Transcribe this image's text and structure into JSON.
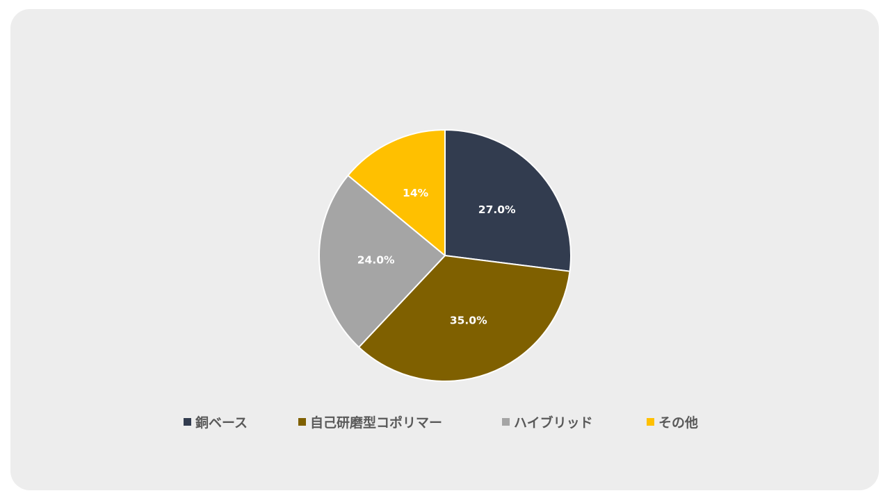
{
  "chart_data": {
    "type": "pie",
    "title": "",
    "slices": [
      {
        "name": "銅ベース",
        "value": 27.0,
        "label": "27.0%",
        "color": "#323c4f"
      },
      {
        "name": "自己研磨型コポリマー",
        "value": 35.0,
        "label": "35.0%",
        "color": "#7f6000"
      },
      {
        "name": "ハイブリッド",
        "value": 24.0,
        "label": "24.0%",
        "color": "#a5a5a5"
      },
      {
        "name": "その他",
        "value": 14.0,
        "label": "14%",
        "color": "#ffc000"
      }
    ],
    "start_angle_deg": 0,
    "direction": "clockwise",
    "legend_position": "bottom",
    "data_labels": true
  },
  "colors": {
    "background": "#ededed",
    "legend_text": "#595959",
    "data_label_text": "#ffffff",
    "slice_border": "#ffffff"
  }
}
